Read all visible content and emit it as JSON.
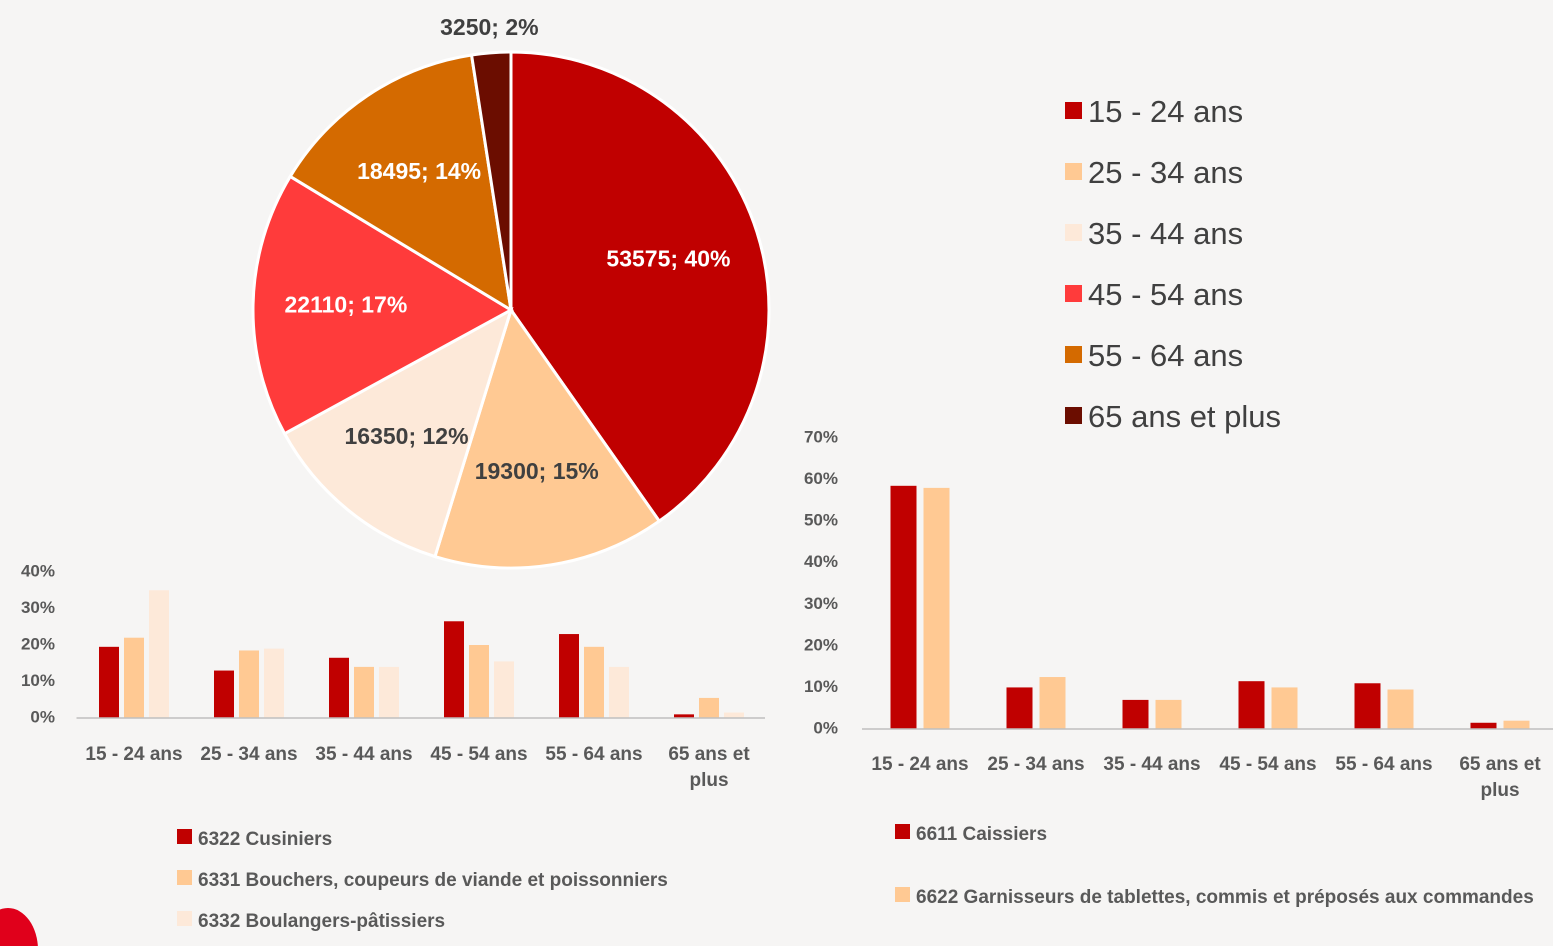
{
  "chart_data": [
    {
      "type": "pie",
      "categories": [
        "15 - 24 ans",
        "25 - 34 ans",
        "35 - 44 ans",
        "45 - 54 ans",
        "55 - 64 ans",
        "65 ans et plus"
      ],
      "values": [
        53575,
        19300,
        16350,
        22110,
        18495,
        3250
      ],
      "value_labels": [
        "53575; 40%",
        "19300; 15%",
        "16350; 12%",
        "22110; 17%",
        "18495; 14%",
        "3250; 2%"
      ],
      "colors": [
        "#c00000",
        "#ffc993",
        "#fde9d9",
        "#ff3b3b",
        "#d46a00",
        "#6b0d00"
      ]
    },
    {
      "type": "bar",
      "categories": [
        "15 - 24 ans",
        "25 - 34 ans",
        "35 - 44 ans",
        "45 - 54 ans",
        "55 - 64 ans",
        "65 ans et plus"
      ],
      "series": [
        {
          "name": "6322 Cusiniers",
          "color": "#c00000",
          "values": [
            19.5,
            13,
            16.5,
            26.5,
            23,
            1
          ]
        },
        {
          "name": "6331 Bouchers, coupeurs de viande et poissonniers",
          "color": "#ffc993",
          "values": [
            22,
            18.5,
            14,
            20,
            19.5,
            5.5
          ]
        },
        {
          "name": "6332 Boulangers-pâtissiers",
          "color": "#fde9d9",
          "values": [
            35,
            19,
            14,
            15.5,
            14,
            1.5
          ]
        }
      ],
      "ylim": [
        0,
        40
      ],
      "yticks": [
        {
          "value": 0,
          "label": "0%"
        },
        {
          "value": 10,
          "label": "10%"
        },
        {
          "value": 20,
          "label": "20%"
        },
        {
          "value": 30,
          "label": "30%"
        },
        {
          "value": 40,
          "label": "40%"
        }
      ]
    },
    {
      "type": "bar",
      "categories": [
        "15 - 24 ans",
        "25 - 34 ans",
        "35 - 44 ans",
        "45 - 54 ans",
        "55 - 64 ans",
        "65 ans et plus"
      ],
      "series": [
        {
          "name": "6611 Caissiers",
          "color": "#c00000",
          "values": [
            58.5,
            10,
            7,
            11.5,
            11,
            1.5
          ]
        },
        {
          "name": "6622 Garnisseurs de tablettes, commis et préposés aux commandes",
          "color": "#ffc993",
          "values": [
            58,
            12.5,
            7,
            10,
            9.5,
            2
          ]
        }
      ],
      "ylim": [
        0,
        70
      ],
      "yticks": [
        {
          "value": 0,
          "label": "0%"
        },
        {
          "value": 10,
          "label": "10%"
        },
        {
          "value": 20,
          "label": "20%"
        },
        {
          "value": 30,
          "label": "30%"
        },
        {
          "value": 40,
          "label": "40%"
        },
        {
          "value": 50,
          "label": "50%"
        },
        {
          "value": 60,
          "label": "60%"
        },
        {
          "value": 70,
          "label": "70%"
        }
      ]
    }
  ]
}
